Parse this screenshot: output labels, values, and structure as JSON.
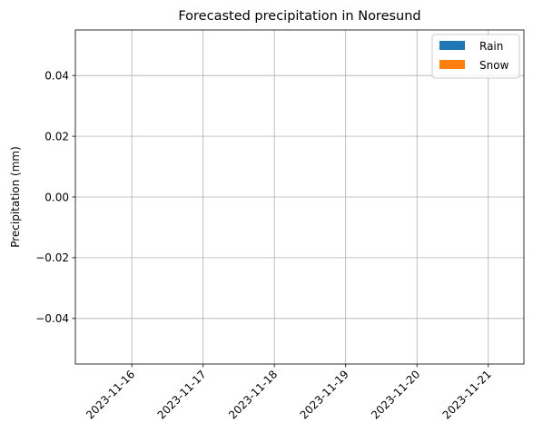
{
  "chart_data": {
    "type": "bar",
    "title": "Forecasted precipitation in Noresund",
    "xlabel": "",
    "ylabel": "Precipitation (mm)",
    "x_ticks": [
      "2023-11-16",
      "2023-11-17",
      "2023-11-18",
      "2023-11-19",
      "2023-11-20",
      "2023-11-21"
    ],
    "x_range": [
      "2023-11-15T05:00",
      "2023-11-21T12:00"
    ],
    "y_ticks": [
      -0.04,
      -0.02,
      0.0,
      0.02,
      0.04
    ],
    "y_tick_labels": [
      "−0.04",
      "−0.02",
      "0.00",
      "0.02",
      "0.04"
    ],
    "ylim": [
      -0.055,
      0.055
    ],
    "grid": true,
    "legend_position": "top-right",
    "series": [
      {
        "name": "Rain",
        "color": "#1f77b4",
        "values": []
      },
      {
        "name": "Snow",
        "color": "#ff7f0e",
        "values": []
      }
    ]
  }
}
